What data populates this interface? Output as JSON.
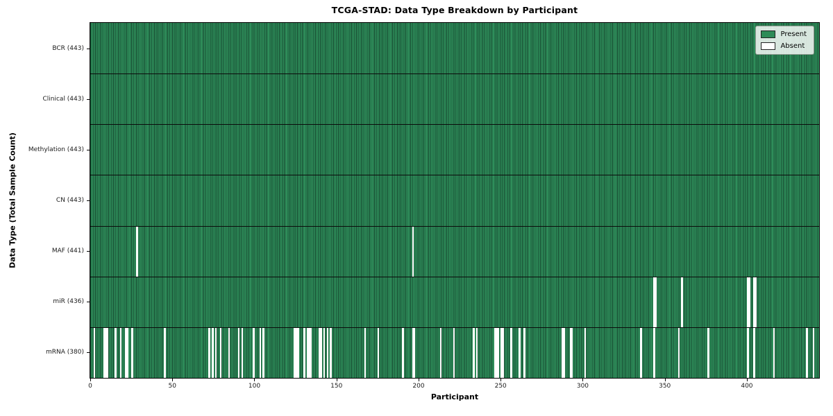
{
  "title": "TCGA-STAD: Data Type Breakdown by Participant",
  "x_axis": {
    "label": "Participant",
    "ticks": [
      "0",
      "50",
      "100",
      "150",
      "200",
      "250",
      "300",
      "350",
      "400"
    ]
  },
  "y_axis": {
    "label": "Data Type (Total Sample Count)"
  },
  "legend": {
    "items": [
      {
        "label": "Present",
        "color": "#2e8b57"
      },
      {
        "label": "Absent",
        "color": "#ffffff"
      }
    ]
  },
  "chart_data": {
    "type": "heatmap",
    "title": "TCGA-STAD: Data Type Breakdown by Participant",
    "xlabel": "Participant",
    "ylabel": "Data Type (Total Sample Count)",
    "x_range": [
      0,
      443
    ],
    "x_ticks": [
      0,
      50,
      100,
      150,
      200,
      250,
      300,
      350,
      400
    ],
    "n_participants": 443,
    "legend": [
      "Present",
      "Absent"
    ],
    "colors": {
      "present": "#2e8b57",
      "absent": "#ffffff",
      "bar_edge": "#16472f"
    },
    "grid": false,
    "legend_position": "upper right",
    "rows": [
      {
        "data_type": "BCR",
        "total_samples": 443,
        "label": "BCR (443)",
        "absent_participants": []
      },
      {
        "data_type": "Clinical",
        "total_samples": 443,
        "label": "Clinical (443)",
        "absent_participants": []
      },
      {
        "data_type": "Methylation",
        "total_samples": 443,
        "label": "Methylation (443)",
        "absent_participants": []
      },
      {
        "data_type": "CN",
        "total_samples": 443,
        "label": "CN (443)",
        "absent_participants": []
      },
      {
        "data_type": "MAF",
        "total_samples": 441,
        "label": "MAF (441)",
        "absent_participants": [
          28,
          196
        ]
      },
      {
        "data_type": "miR",
        "total_samples": 436,
        "label": "miR (436)",
        "absent_participants": [
          343,
          344,
          360,
          400,
          401,
          404,
          405
        ]
      },
      {
        "data_type": "mRNA",
        "total_samples": 380,
        "label": "mRNA (380)",
        "absent_participants": [
          2,
          8,
          9,
          10,
          15,
          18,
          21,
          22,
          25,
          45,
          72,
          74,
          76,
          79,
          84,
          90,
          92,
          99,
          103,
          105,
          124,
          125,
          126,
          130,
          132,
          133,
          134,
          139,
          140,
          142,
          144,
          146,
          167,
          175,
          190,
          196,
          197,
          213,
          221,
          233,
          235,
          246,
          247,
          248,
          250,
          251,
          256,
          261,
          264,
          287,
          288,
          292,
          293,
          301,
          335,
          343,
          358,
          376,
          400,
          404,
          416,
          436,
          440
        ]
      }
    ]
  }
}
